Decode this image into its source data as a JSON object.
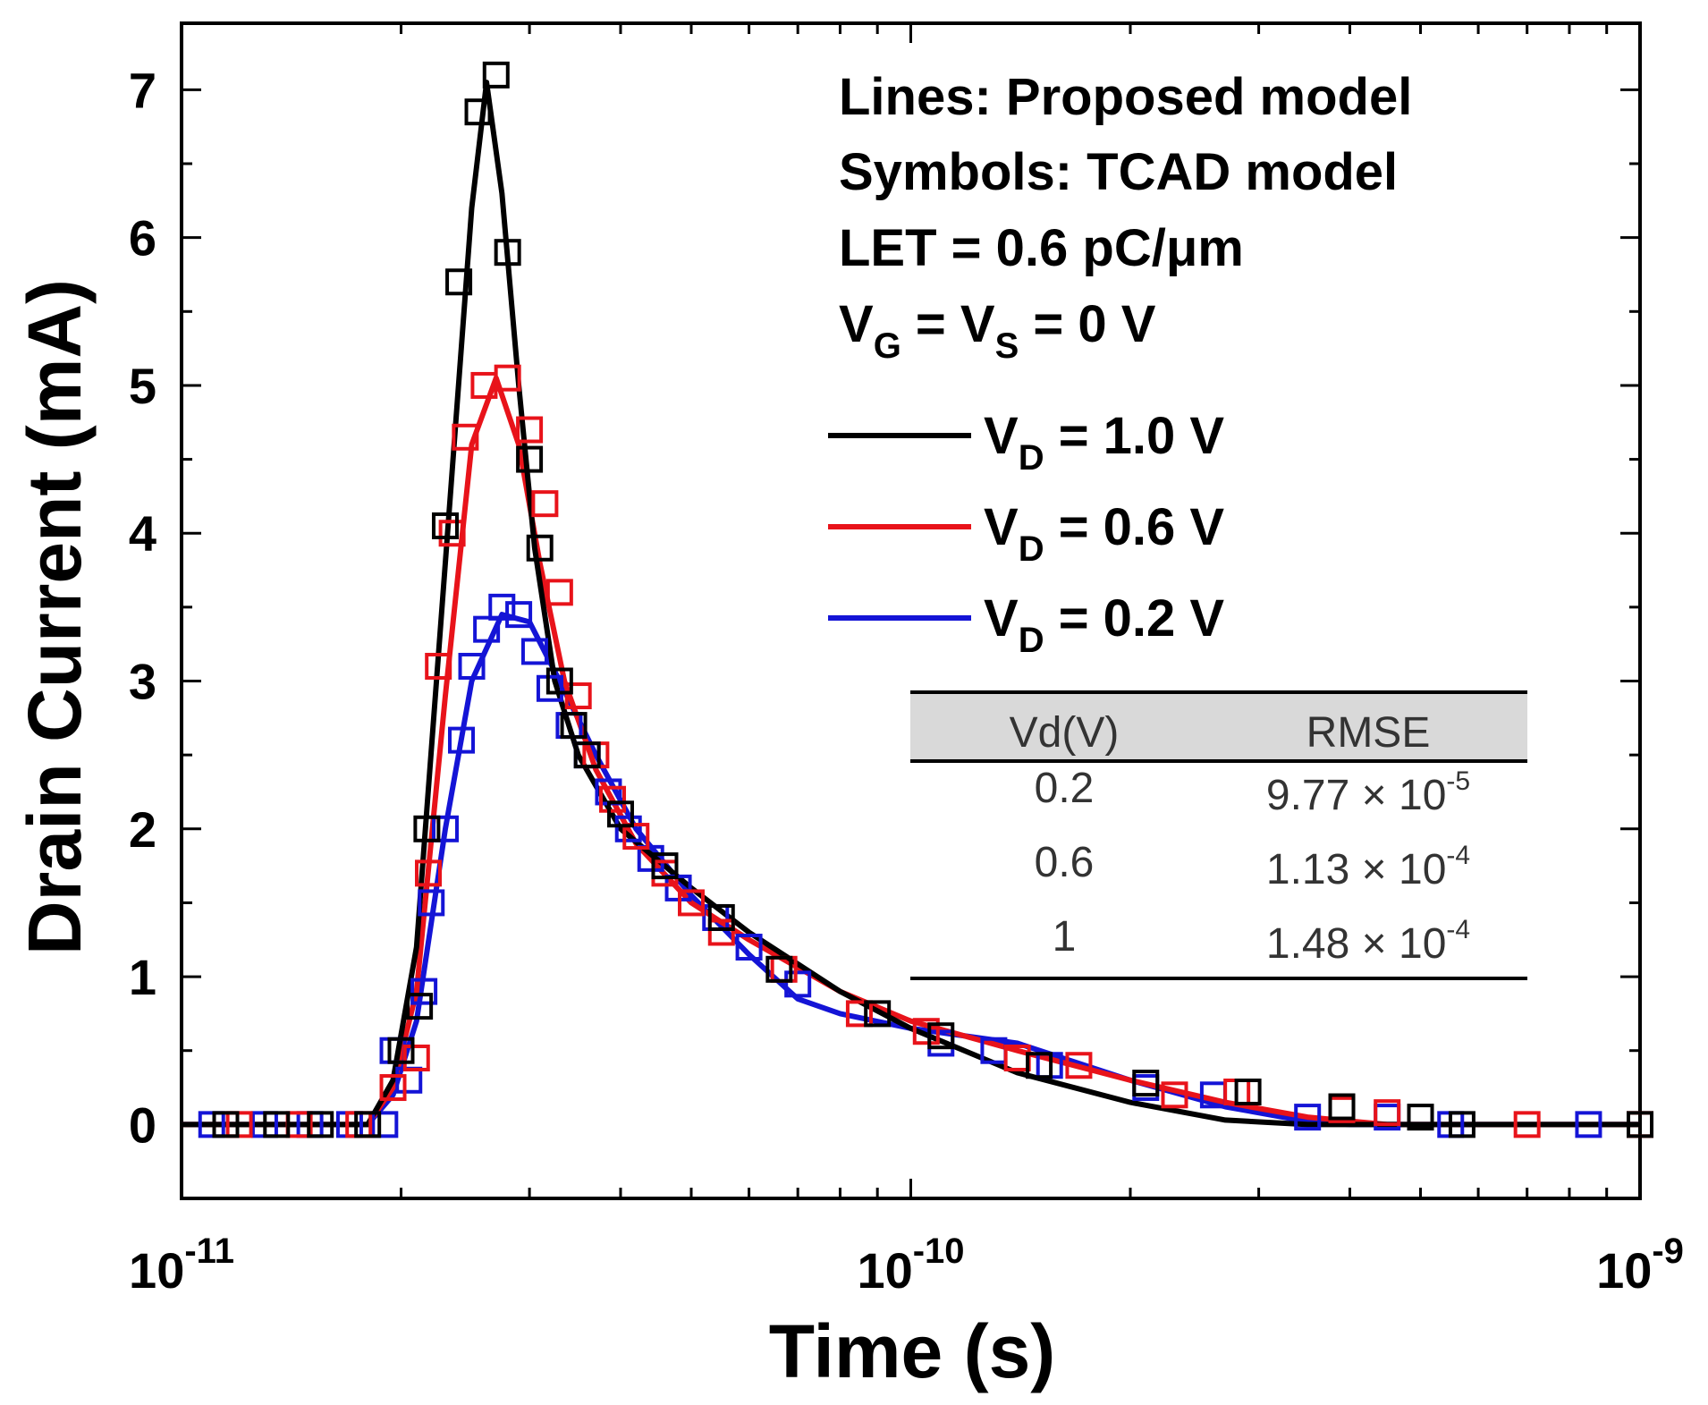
{
  "chart_data": {
    "type": "line",
    "xscale": "log",
    "ylabel": "Drain Current (mA)",
    "xlabel": "Time (s)",
    "xlim": [
      1e-11,
      1e-09
    ],
    "ylim": [
      -0.5,
      7.45
    ],
    "x_ticks": [
      {
        "value": 1e-11,
        "base": "10",
        "exp": "-11"
      },
      {
        "value": 1e-10,
        "base": "10",
        "exp": "-10"
      },
      {
        "value": 1e-09,
        "base": "10",
        "exp": "-9"
      }
    ],
    "y_ticks": [
      0,
      1,
      2,
      3,
      4,
      5,
      6,
      7
    ],
    "y_tick_labels": [
      "0",
      "1",
      "2",
      "3",
      "4",
      "5",
      "6",
      "7"
    ],
    "annotations": {
      "line1": "Lines: Proposed model",
      "line2": "Symbols: TCAD model",
      "line3": "LET = 0.6 pC/μm",
      "line4": {
        "p1": "V",
        "s1": "G",
        "p2": " = V",
        "s2": "S",
        "p3": " = 0 V"
      }
    },
    "series": [
      {
        "name": {
          "p1": "V",
          "s1": "D",
          "p2": " = 1.0 V"
        },
        "color": "#000000",
        "line": [
          [
            1e-11,
            0
          ],
          [
            1.8e-11,
            0
          ],
          [
            1.95e-11,
            0.3
          ],
          [
            2.1e-11,
            1.2
          ],
          [
            2.3e-11,
            3.8
          ],
          [
            2.5e-11,
            6.2
          ],
          [
            2.62e-11,
            7.05
          ],
          [
            2.75e-11,
            6.3
          ],
          [
            2.9e-11,
            5.0
          ],
          [
            3.05e-11,
            3.9
          ],
          [
            3.25e-11,
            3.0
          ],
          [
            3.5e-11,
            2.5
          ],
          [
            4e-11,
            2.0
          ],
          [
            5e-11,
            1.6
          ],
          [
            6e-11,
            1.3
          ],
          [
            8e-11,
            0.9
          ],
          [
            1e-10,
            0.65
          ],
          [
            1.4e-10,
            0.35
          ],
          [
            2e-10,
            0.15
          ],
          [
            2.7e-10,
            0.03
          ],
          [
            3.5e-10,
            0
          ],
          [
            1e-09,
            0
          ]
        ],
        "markers": [
          [
            1.15e-11,
            0
          ],
          [
            1.35e-11,
            0
          ],
          [
            1.55e-11,
            0
          ],
          [
            1.8e-11,
            0
          ],
          [
            2e-11,
            0.5
          ],
          [
            2.12e-11,
            0.8
          ],
          [
            2.17e-11,
            2.0
          ],
          [
            2.3e-11,
            4.05
          ],
          [
            2.4e-11,
            5.7
          ],
          [
            2.55e-11,
            6.85
          ],
          [
            2.7e-11,
            7.1
          ],
          [
            2.8e-11,
            5.9
          ],
          [
            3e-11,
            4.5
          ],
          [
            3.1e-11,
            3.9
          ],
          [
            3.3e-11,
            3.0
          ],
          [
            3.45e-11,
            2.7
          ],
          [
            3.6e-11,
            2.5
          ],
          [
            4e-11,
            2.1
          ],
          [
            4.6e-11,
            1.75
          ],
          [
            5.5e-11,
            1.4
          ],
          [
            6.6e-11,
            1.05
          ],
          [
            9e-11,
            0.75
          ],
          [
            1.1e-10,
            0.6
          ],
          [
            1.5e-10,
            0.4
          ],
          [
            2.1e-10,
            0.28
          ],
          [
            2.9e-10,
            0.22
          ],
          [
            3.9e-10,
            0.12
          ],
          [
            5e-10,
            0.05
          ],
          [
            5.7e-10,
            0
          ],
          [
            1e-09,
            0
          ]
        ]
      },
      {
        "name": {
          "p1": "V",
          "s1": "D",
          "p2": " = 0.6 V"
        },
        "color": "#e8131a",
        "line": [
          [
            1e-11,
            0
          ],
          [
            1.8e-11,
            0
          ],
          [
            1.95e-11,
            0.25
          ],
          [
            2.1e-11,
            0.9
          ],
          [
            2.3e-11,
            2.9
          ],
          [
            2.5e-11,
            4.6
          ],
          [
            2.7e-11,
            5.05
          ],
          [
            2.9e-11,
            4.6
          ],
          [
            3.1e-11,
            3.8
          ],
          [
            3.35e-11,
            3.0
          ],
          [
            3.7e-11,
            2.4
          ],
          [
            4.2e-11,
            1.9
          ],
          [
            5e-11,
            1.5
          ],
          [
            6e-11,
            1.25
          ],
          [
            8e-11,
            0.9
          ],
          [
            1e-10,
            0.7
          ],
          [
            1.4e-10,
            0.5
          ],
          [
            2e-10,
            0.3
          ],
          [
            2.7e-10,
            0.15
          ],
          [
            3.5e-10,
            0.05
          ],
          [
            4.5e-10,
            0
          ],
          [
            1e-09,
            0
          ]
        ],
        "markers": [
          [
            1.2e-11,
            0
          ],
          [
            1.45e-11,
            0
          ],
          [
            1.75e-11,
            0
          ],
          [
            1.95e-11,
            0.25
          ],
          [
            2.1e-11,
            0.45
          ],
          [
            2.18e-11,
            1.7
          ],
          [
            2.25e-11,
            3.1
          ],
          [
            2.35e-11,
            4.0
          ],
          [
            2.45e-11,
            4.65
          ],
          [
            2.6e-11,
            5.0
          ],
          [
            2.8e-11,
            5.05
          ],
          [
            3e-11,
            4.7
          ],
          [
            3.15e-11,
            4.2
          ],
          [
            3.3e-11,
            3.6
          ],
          [
            3.5e-11,
            2.9
          ],
          [
            3.7e-11,
            2.5
          ],
          [
            3.9e-11,
            2.2
          ],
          [
            4.2e-11,
            1.95
          ],
          [
            4.6e-11,
            1.7
          ],
          [
            5e-11,
            1.5
          ],
          [
            5.5e-11,
            1.3
          ],
          [
            6.7e-11,
            1.05
          ],
          [
            8.5e-11,
            0.75
          ],
          [
            1.05e-10,
            0.63
          ],
          [
            1.4e-10,
            0.45
          ],
          [
            1.7e-10,
            0.4
          ],
          [
            2.3e-10,
            0.2
          ],
          [
            2.8e-10,
            0.22
          ],
          [
            3.9e-10,
            0.1
          ],
          [
            4.5e-10,
            0.08
          ],
          [
            7e-10,
            0
          ],
          [
            1e-09,
            0
          ]
        ]
      },
      {
        "name": {
          "p1": "V",
          "s1": "D",
          "p2": " = 0.2 V"
        },
        "color": "#1414d6",
        "line": [
          [
            1e-11,
            0
          ],
          [
            1.8e-11,
            0
          ],
          [
            1.95e-11,
            0.2
          ],
          [
            2.1e-11,
            0.7
          ],
          [
            2.3e-11,
            2.0
          ],
          [
            2.5e-11,
            3.0
          ],
          [
            2.75e-11,
            3.45
          ],
          [
            3e-11,
            3.4
          ],
          [
            3.3e-11,
            3.0
          ],
          [
            3.7e-11,
            2.5
          ],
          [
            4.2e-11,
            2.0
          ],
          [
            5e-11,
            1.55
          ],
          [
            6e-11,
            1.15
          ],
          [
            7e-11,
            0.85
          ],
          [
            8e-11,
            0.75
          ],
          [
            1e-10,
            0.65
          ],
          [
            1.4e-10,
            0.55
          ],
          [
            2e-10,
            0.3
          ],
          [
            2.7e-10,
            0.12
          ],
          [
            3.5e-10,
            0.02
          ],
          [
            4e-10,
            0
          ],
          [
            1e-09,
            0
          ]
        ],
        "markers": [
          [
            1.1e-11,
            0
          ],
          [
            1.3e-11,
            0
          ],
          [
            1.5e-11,
            0
          ],
          [
            1.7e-11,
            0
          ],
          [
            1.9e-11,
            0
          ],
          [
            1.95e-11,
            0.5
          ],
          [
            2.05e-11,
            0.3
          ],
          [
            2.15e-11,
            0.9
          ],
          [
            2.2e-11,
            1.5
          ],
          [
            2.3e-11,
            2.0
          ],
          [
            2.42e-11,
            2.6
          ],
          [
            2.5e-11,
            3.1
          ],
          [
            2.62e-11,
            3.35
          ],
          [
            2.75e-11,
            3.5
          ],
          [
            2.9e-11,
            3.45
          ],
          [
            3.05e-11,
            3.2
          ],
          [
            3.2e-11,
            2.95
          ],
          [
            3.4e-11,
            2.7
          ],
          [
            3.6e-11,
            2.5
          ],
          [
            3.85e-11,
            2.25
          ],
          [
            4.1e-11,
            2.0
          ],
          [
            4.4e-11,
            1.8
          ],
          [
            4.8e-11,
            1.6
          ],
          [
            5.4e-11,
            1.4
          ],
          [
            6e-11,
            1.2
          ],
          [
            7e-11,
            0.95
          ],
          [
            1.1e-10,
            0.55
          ],
          [
            1.3e-10,
            0.5
          ],
          [
            1.55e-10,
            0.4
          ],
          [
            2.1e-10,
            0.25
          ],
          [
            2.6e-10,
            0.2
          ],
          [
            3.5e-10,
            0.05
          ],
          [
            4.5e-10,
            0.05
          ],
          [
            5.5e-10,
            0
          ],
          [
            8.5e-10,
            0
          ]
        ]
      }
    ],
    "table": {
      "headers": [
        "Vd(V)",
        "RMSE"
      ],
      "rows": [
        {
          "vd": "0.2",
          "mant": "9.77 × 10",
          "exp": "-5"
        },
        {
          "vd": "0.6",
          "mant": "1.13 × 10",
          "exp": "-4"
        },
        {
          "vd": "1",
          "mant": "1.48 × 10",
          "exp": "-4"
        }
      ],
      "header_bg": "#d9d9d9"
    }
  }
}
